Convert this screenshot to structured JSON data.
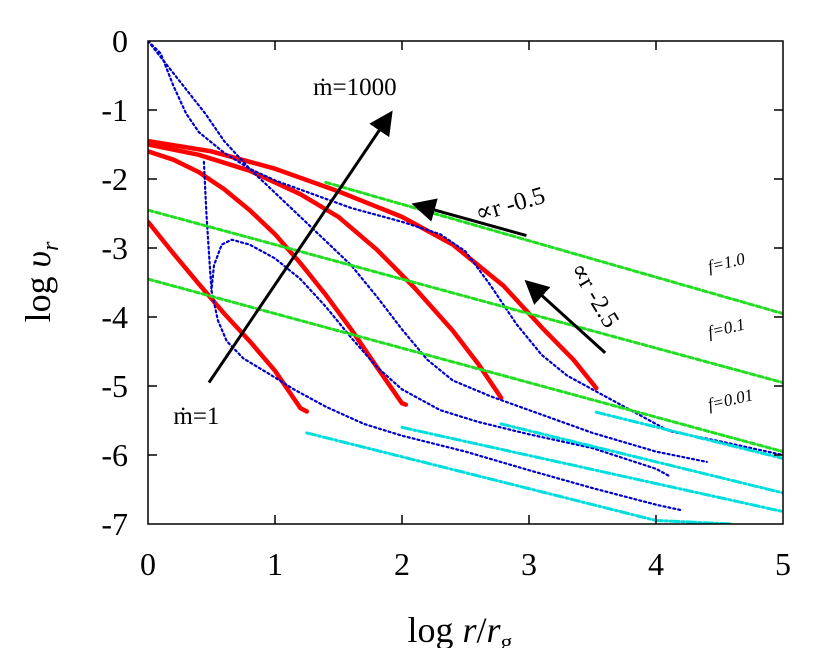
{
  "chart_data": {
    "type": "line",
    "xlabel": "log r/r_g",
    "ylabel": "log υ_r",
    "xlim": [
      0,
      5
    ],
    "ylim": [
      -7,
      0
    ],
    "x_ticks": [
      "0",
      "1",
      "2",
      "3",
      "4",
      "5"
    ],
    "y_ticks": [
      "0",
      "-1",
      "-2",
      "-3",
      "-4",
      "-5",
      "-6",
      "-7"
    ],
    "grid": false,
    "colors": {
      "numerical": "#ff0000",
      "analytic": "#0000cc",
      "self_similar": "#22dd22",
      "outer": "#00dddd",
      "arrow": "#000000"
    },
    "series": [
      {
        "style": "solid-red",
        "points": [
          [
            0,
            -2.62
          ],
          [
            0.2,
            -3.08
          ],
          [
            0.4,
            -3.52
          ],
          [
            0.6,
            -3.95
          ],
          [
            0.8,
            -4.35
          ],
          [
            1.0,
            -4.78
          ],
          [
            1.2,
            -5.32
          ],
          [
            1.25,
            -5.37
          ]
        ]
      },
      {
        "style": "solid-red",
        "points": [
          [
            0,
            -1.6
          ],
          [
            0.2,
            -1.72
          ],
          [
            0.4,
            -1.9
          ],
          [
            0.6,
            -2.15
          ],
          [
            0.8,
            -2.45
          ],
          [
            1.0,
            -2.8
          ],
          [
            1.2,
            -3.22
          ],
          [
            1.4,
            -3.68
          ],
          [
            1.6,
            -4.18
          ],
          [
            1.8,
            -4.72
          ],
          [
            2.0,
            -5.25
          ],
          [
            2.03,
            -5.27
          ]
        ]
      },
      {
        "style": "solid-red",
        "points": [
          [
            0,
            -1.5
          ],
          [
            0.4,
            -1.65
          ],
          [
            0.8,
            -1.88
          ],
          [
            1.2,
            -2.22
          ],
          [
            1.5,
            -2.55
          ],
          [
            1.8,
            -3.02
          ],
          [
            2.1,
            -3.58
          ],
          [
            2.4,
            -4.2
          ],
          [
            2.6,
            -4.68
          ],
          [
            2.78,
            -5.17
          ]
        ]
      },
      {
        "style": "solid-red",
        "points": [
          [
            0,
            -1.45
          ],
          [
            0.5,
            -1.6
          ],
          [
            1.0,
            -1.85
          ],
          [
            1.5,
            -2.18
          ],
          [
            2.0,
            -2.55
          ],
          [
            2.4,
            -2.95
          ],
          [
            2.8,
            -3.55
          ],
          [
            3.1,
            -4.15
          ],
          [
            3.35,
            -4.62
          ],
          [
            3.53,
            -5.03
          ]
        ]
      },
      {
        "style": "dotted-blue",
        "points": [
          [
            0,
            0.0
          ],
          [
            0.1,
            -0.18
          ],
          [
            0.2,
            -0.65
          ],
          [
            0.3,
            -1.05
          ],
          [
            0.4,
            -1.32
          ],
          [
            0.6,
            -1.62
          ],
          [
            0.8,
            -1.85
          ],
          [
            1.0,
            -2.02
          ],
          [
            1.3,
            -2.22
          ],
          [
            1.6,
            -2.42
          ],
          [
            2.0,
            -2.62
          ],
          [
            2.3,
            -2.8
          ],
          [
            2.5,
            -3.05
          ],
          [
            2.7,
            -3.55
          ],
          [
            2.9,
            -4.1
          ],
          [
            3.1,
            -4.55
          ],
          [
            3.3,
            -4.85
          ],
          [
            3.55,
            -5.1
          ],
          [
            3.8,
            -5.35
          ],
          [
            4.1,
            -5.65
          ],
          [
            4.5,
            -5.8
          ],
          [
            5.0,
            -6.0
          ]
        ]
      },
      {
        "style": "dotted-blue",
        "points": [
          [
            0,
            0.0
          ],
          [
            0.15,
            -0.35
          ],
          [
            0.3,
            -0.7
          ],
          [
            0.45,
            -1.05
          ],
          [
            0.6,
            -1.45
          ],
          [
            0.8,
            -1.85
          ],
          [
            1.0,
            -2.2
          ],
          [
            1.2,
            -2.55
          ],
          [
            1.4,
            -2.9
          ],
          [
            1.6,
            -3.25
          ],
          [
            1.8,
            -3.7
          ],
          [
            2.0,
            -4.18
          ],
          [
            2.2,
            -4.62
          ],
          [
            2.4,
            -4.92
          ],
          [
            2.7,
            -5.15
          ],
          [
            3.0,
            -5.35
          ],
          [
            3.5,
            -5.68
          ],
          [
            4.0,
            -5.95
          ],
          [
            4.4,
            -6.1
          ]
        ]
      },
      {
        "style": "dotted-blue",
        "points": [
          [
            0.44,
            -1.75
          ],
          [
            0.46,
            -2.5
          ],
          [
            0.49,
            -3.35
          ],
          [
            0.5,
            -3.6
          ],
          [
            0.52,
            -3.25
          ],
          [
            0.58,
            -2.95
          ],
          [
            0.66,
            -2.88
          ],
          [
            0.8,
            -2.95
          ],
          [
            1.0,
            -3.15
          ],
          [
            1.2,
            -3.45
          ],
          [
            1.4,
            -3.85
          ],
          [
            1.6,
            -4.3
          ],
          [
            1.8,
            -4.72
          ],
          [
            2.0,
            -5.05
          ],
          [
            2.3,
            -5.35
          ],
          [
            2.6,
            -5.52
          ],
          [
            3.0,
            -5.7
          ],
          [
            3.5,
            -5.9
          ],
          [
            4.0,
            -6.2
          ],
          [
            4.1,
            -6.3
          ]
        ]
      },
      {
        "style": "dotted-blue",
        "points": [
          [
            0.5,
            -3.62
          ],
          [
            0.55,
            -4.05
          ],
          [
            0.62,
            -4.35
          ],
          [
            0.75,
            -4.6
          ],
          [
            0.95,
            -4.82
          ],
          [
            1.15,
            -5.05
          ],
          [
            1.4,
            -5.3
          ],
          [
            1.7,
            -5.55
          ],
          [
            2.0,
            -5.72
          ],
          [
            2.5,
            -5.95
          ],
          [
            3.0,
            -6.22
          ],
          [
            3.5,
            -6.48
          ],
          [
            4.0,
            -6.72
          ],
          [
            4.2,
            -6.8
          ]
        ]
      },
      {
        "style": "dashed-green",
        "points": [
          [
            1.4,
            -2.05
          ],
          [
            5.0,
            -3.95
          ]
        ]
      },
      {
        "style": "dashed-green",
        "points": [
          [
            0,
            -2.45
          ],
          [
            5.0,
            -4.95
          ]
        ]
      },
      {
        "style": "dashed-green",
        "points": [
          [
            0,
            -3.45
          ],
          [
            5.0,
            -5.95
          ]
        ]
      },
      {
        "style": "dashdot-cyan",
        "points": [
          [
            1.25,
            -5.68
          ],
          [
            4.0,
            -6.95
          ],
          [
            4.6,
            -7.0
          ]
        ]
      },
      {
        "style": "dashdot-cyan",
        "points": [
          [
            2.0,
            -5.6
          ],
          [
            5.0,
            -6.82
          ]
        ]
      },
      {
        "style": "dashdot-cyan",
        "points": [
          [
            2.78,
            -5.55
          ],
          [
            5.0,
            -6.55
          ]
        ]
      },
      {
        "style": "dashdot-cyan",
        "points": [
          [
            3.53,
            -5.38
          ],
          [
            5.0,
            -6.05
          ]
        ]
      }
    ],
    "arrows": [
      {
        "from": [
          0.48,
          -4.95
        ],
        "to": [
          1.9,
          -1.08
        ]
      },
      {
        "from": [
          2.98,
          -2.82
        ],
        "to": [
          2.12,
          -2.38
        ]
      },
      {
        "from": [
          3.6,
          -4.52
        ],
        "to": [
          3.0,
          -3.52
        ]
      }
    ],
    "annotations": {
      "mdot_high": {
        "text": "ṁ=1000",
        "at": [
          1.3,
          -0.78
        ]
      },
      "mdot_low": {
        "text": "ṁ=1",
        "at": [
          0.2,
          -5.55
        ]
      },
      "slope_a": {
        "text": "∝r -0.5",
        "at": [
          2.6,
          -2.62
        ],
        "rotate": -16
      },
      "slope_b": {
        "text": "∝r -2.5",
        "at": [
          3.32,
          -3.3
        ],
        "rotate": 59
      },
      "f1": {
        "text": "f=1.0",
        "at": [
          4.42,
          -3.35
        ],
        "rotate": -13
      },
      "f2": {
        "text": "f=0.1",
        "at": [
          4.42,
          -4.3
        ],
        "rotate": -13
      },
      "f3": {
        "text": "f=0.01",
        "at": [
          4.42,
          -5.35
        ],
        "rotate": -13
      }
    }
  }
}
